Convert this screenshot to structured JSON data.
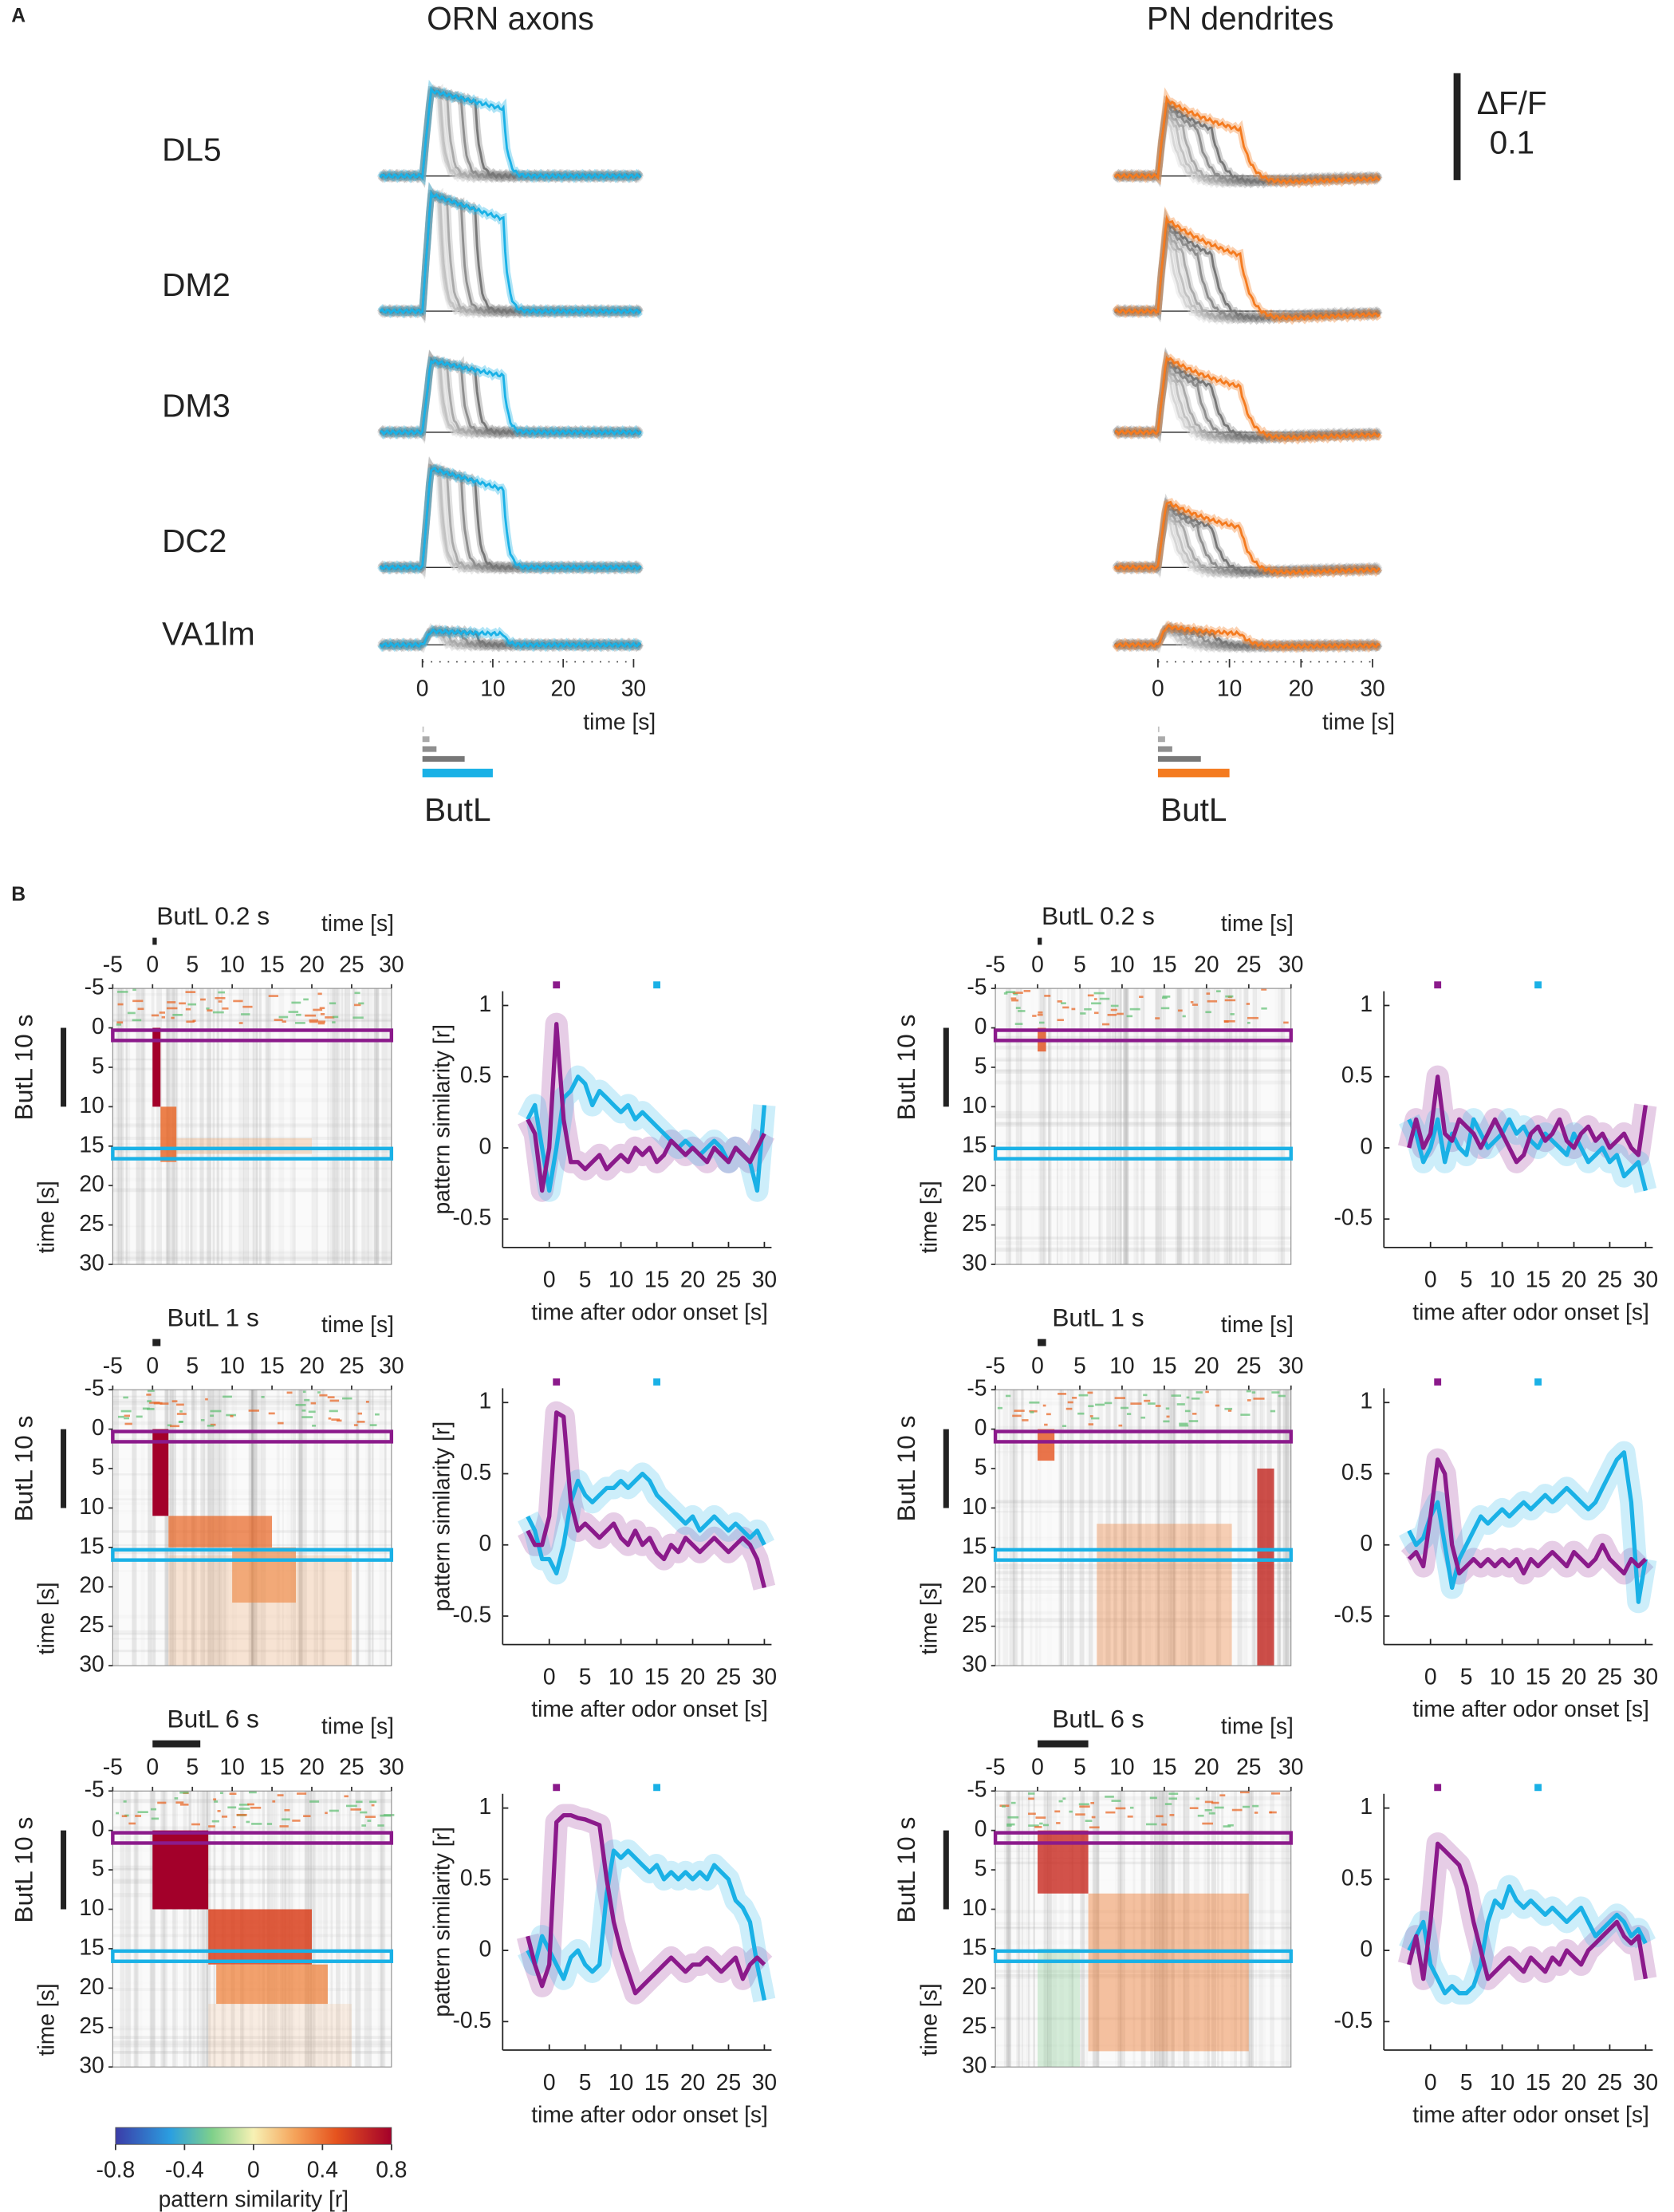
{
  "panel_a": {
    "label": "A",
    "scale_bar": {
      "label": "ΔF/F",
      "value": 0.1
    },
    "glomeruli": [
      "DL5",
      "DM2",
      "DM3",
      "DC2",
      "VA1lm"
    ],
    "columns": [
      {
        "title": "ORN axons",
        "color": "#1ab1e6",
        "stimulus": "ButL",
        "xlim": [
          -6,
          31
        ],
        "xticks": [
          0,
          10,
          20,
          30
        ],
        "xlabel": "time [s]"
      },
      {
        "title": "PN dendrites",
        "color": "#f47b20",
        "stimulus": "ButL",
        "xlim": [
          -6,
          31
        ],
        "xticks": [
          0,
          10,
          20,
          30
        ],
        "xlabel": "time [s]"
      }
    ]
  },
  "panel_b": {
    "label": "B",
    "colorbar": {
      "label": "pattern similarity [r]",
      "lim": [
        -0.8,
        0.8
      ],
      "ticks": [
        -0.8,
        -0.4,
        0,
        0.4,
        0.8
      ]
    }
  },
  "chart_data": [
    {
      "type": "heatmap",
      "title": "ButL 0.2 s",
      "xlabel": "time [s]",
      "ylabel": "time [s]",
      "reference": "ButL 10 s",
      "xlim": [
        -5,
        30
      ],
      "ylim": [
        -5,
        30
      ],
      "xticks": [
        -5,
        0,
        5,
        10,
        15,
        20,
        25,
        30
      ],
      "yticks": [
        -5,
        0,
        5,
        10,
        15,
        20,
        25,
        30
      ]
    },
    {
      "type": "line",
      "xlabel": "time after odor onset [s]",
      "ylabel": "pattern similarity [r]",
      "xlim": [
        -6.5,
        31
      ],
      "ylim": [
        -0.7,
        1.1
      ],
      "xticks": [
        0,
        5,
        10,
        15,
        20,
        25,
        30
      ],
      "yticks": [
        -0.5,
        0,
        0.5,
        1
      ],
      "x": [
        -3,
        -2,
        -1,
        0,
        1,
        2,
        3,
        4,
        5,
        6,
        7,
        8,
        9,
        10,
        11,
        12,
        13,
        14,
        15,
        16,
        17,
        18,
        19,
        20,
        21,
        22,
        23,
        24,
        25,
        26,
        27,
        28,
        29,
        30
      ],
      "series": [
        {
          "color": "#8b1a8b",
          "values": [
            0.2,
            0.1,
            -0.3,
            0.0,
            0.87,
            0.2,
            -0.1,
            -0.1,
            -0.15,
            -0.1,
            -0.05,
            -0.15,
            -0.1,
            -0.05,
            -0.1,
            0.0,
            -0.05,
            0.0,
            -0.1,
            -0.05,
            0.05,
            0.0,
            -0.05,
            0.0,
            -0.05,
            -0.1,
            0.0,
            -0.05,
            -0.1,
            0.0,
            -0.05,
            -0.1,
            0.0,
            0.1
          ]
        },
        {
          "color": "#1ab1e6",
          "values": [
            0.2,
            0.3,
            0.0,
            -0.3,
            0.0,
            0.35,
            0.4,
            0.5,
            0.45,
            0.3,
            0.4,
            0.35,
            0.3,
            0.25,
            0.3,
            0.2,
            0.25,
            0.2,
            0.15,
            0.1,
            0.05,
            0.0,
            0.05,
            0.0,
            -0.05,
            0.0,
            0.05,
            0.0,
            -0.1,
            0.0,
            -0.05,
            -0.1,
            -0.3,
            0.3
          ]
        }
      ]
    },
    {
      "type": "heatmap",
      "title": "ButL 0.2 s",
      "xlabel": "time [s]",
      "ylabel": "time [s]",
      "reference": "ButL 10 s",
      "xlim": [
        -5,
        30
      ],
      "ylim": [
        -5,
        30
      ],
      "xticks": [
        -5,
        0,
        5,
        10,
        15,
        20,
        25,
        30
      ],
      "yticks": [
        -5,
        0,
        5,
        10,
        15,
        20,
        25,
        30
      ]
    },
    {
      "type": "line",
      "xlabel": "time after odor onset [s]",
      "xlim": [
        -6.5,
        31
      ],
      "ylim": [
        -0.7,
        1.1
      ],
      "xticks": [
        0,
        5,
        10,
        15,
        20,
        25,
        30
      ],
      "yticks": [
        -0.5,
        0,
        0.5,
        1
      ],
      "x": [
        -3,
        -2,
        -1,
        0,
        1,
        2,
        3,
        4,
        5,
        6,
        7,
        8,
        9,
        10,
        11,
        12,
        13,
        14,
        15,
        16,
        17,
        18,
        19,
        20,
        21,
        22,
        23,
        24,
        25,
        26,
        27,
        28,
        29,
        30
      ],
      "series": [
        {
          "color": "#8b1a8b",
          "values": [
            0.0,
            0.2,
            0.0,
            0.1,
            0.5,
            0.1,
            0.05,
            0.2,
            0.15,
            0.1,
            0.0,
            0.1,
            0.2,
            0.1,
            0.0,
            -0.1,
            -0.05,
            0.1,
            0.15,
            0.05,
            0.1,
            0.2,
            0.05,
            0.0,
            0.1,
            0.15,
            0.05,
            0.1,
            0.0,
            0.05,
            0.1,
            0.0,
            -0.05,
            0.3
          ]
        },
        {
          "color": "#1ab1e6",
          "values": [
            0.2,
            0.1,
            -0.1,
            0.0,
            0.2,
            -0.1,
            0.1,
            0.0,
            -0.05,
            0.2,
            0.1,
            0.0,
            0.05,
            0.1,
            0.2,
            0.1,
            0.15,
            0.05,
            0.0,
            0.1,
            0.05,
            0.0,
            -0.05,
            0.1,
            0.0,
            -0.1,
            -0.05,
            0.0,
            -0.1,
            -0.05,
            -0.2,
            -0.15,
            -0.1,
            -0.3
          ]
        }
      ]
    },
    {
      "type": "heatmap",
      "title": "ButL 1 s",
      "xlabel": "time [s]",
      "ylabel": "time [s]",
      "reference": "ButL 10 s",
      "xlim": [
        -5,
        30
      ],
      "ylim": [
        -5,
        30
      ],
      "xticks": [
        -5,
        0,
        5,
        10,
        15,
        20,
        25,
        30
      ],
      "yticks": [
        -5,
        0,
        5,
        10,
        15,
        20,
        25,
        30
      ]
    },
    {
      "type": "line",
      "xlabel": "time after odor onset [s]",
      "ylabel": "pattern similarity [r]",
      "xlim": [
        -6.5,
        31
      ],
      "ylim": [
        -0.7,
        1.1
      ],
      "xticks": [
        0,
        5,
        10,
        15,
        20,
        25,
        30
      ],
      "yticks": [
        -0.5,
        0,
        0.5,
        1
      ],
      "x": [
        -3,
        -2,
        -1,
        0,
        1,
        2,
        3,
        4,
        5,
        6,
        7,
        8,
        9,
        10,
        11,
        12,
        13,
        14,
        15,
        16,
        17,
        18,
        19,
        20,
        21,
        22,
        23,
        24,
        25,
        26,
        27,
        28,
        29,
        30
      ],
      "series": [
        {
          "color": "#8b1a8b",
          "values": [
            0.1,
            0.0,
            0.0,
            0.2,
            0.93,
            0.9,
            0.3,
            0.1,
            0.15,
            0.1,
            0.05,
            0.1,
            0.15,
            0.05,
            0.0,
            0.1,
            0.0,
            0.05,
            -0.05,
            -0.1,
            0.0,
            -0.05,
            0.05,
            0.0,
            -0.05,
            0.0,
            0.05,
            0.0,
            -0.05,
            0.0,
            0.05,
            0.0,
            -0.1,
            -0.3
          ]
        },
        {
          "color": "#1ab1e6",
          "values": [
            0.2,
            0.1,
            -0.1,
            -0.1,
            -0.2,
            0.0,
            0.3,
            0.45,
            0.35,
            0.3,
            0.35,
            0.4,
            0.4,
            0.45,
            0.4,
            0.45,
            0.5,
            0.45,
            0.35,
            0.3,
            0.25,
            0.2,
            0.15,
            0.2,
            0.1,
            0.15,
            0.2,
            0.15,
            0.1,
            0.15,
            0.1,
            0.05,
            0.1,
            0.0
          ]
        }
      ]
    },
    {
      "type": "heatmap",
      "title": "ButL 1 s",
      "xlabel": "time [s]",
      "ylabel": "time [s]",
      "reference": "ButL 10 s",
      "xlim": [
        -5,
        30
      ],
      "ylim": [
        -5,
        30
      ],
      "xticks": [
        -5,
        0,
        5,
        10,
        15,
        20,
        25,
        30
      ],
      "yticks": [
        -5,
        0,
        5,
        10,
        15,
        20,
        25,
        30
      ]
    },
    {
      "type": "line",
      "xlabel": "time after odor onset [s]",
      "xlim": [
        -6.5,
        31
      ],
      "ylim": [
        -0.7,
        1.1
      ],
      "xticks": [
        0,
        5,
        10,
        15,
        20,
        25,
        30
      ],
      "yticks": [
        -0.5,
        0,
        0.5,
        1
      ],
      "x": [
        -3,
        -2,
        -1,
        0,
        1,
        2,
        3,
        4,
        5,
        6,
        7,
        8,
        9,
        10,
        11,
        12,
        13,
        14,
        15,
        16,
        17,
        18,
        19,
        20,
        21,
        22,
        23,
        24,
        25,
        26,
        27,
        28,
        29,
        30
      ],
      "series": [
        {
          "color": "#8b1a8b",
          "values": [
            -0.1,
            -0.05,
            -0.15,
            0.2,
            0.6,
            0.5,
            0.0,
            -0.2,
            -0.15,
            -0.1,
            -0.15,
            -0.1,
            -0.15,
            -0.1,
            -0.15,
            -0.1,
            -0.2,
            -0.1,
            -0.15,
            -0.1,
            -0.05,
            -0.1,
            -0.15,
            -0.05,
            -0.1,
            -0.15,
            -0.1,
            0.0,
            -0.1,
            -0.15,
            -0.2,
            -0.1,
            -0.15,
            -0.1
          ]
        },
        {
          "color": "#1ab1e6",
          "values": [
            0.1,
            0.0,
            0.05,
            0.2,
            0.3,
            0.0,
            -0.3,
            -0.1,
            0.0,
            0.1,
            0.2,
            0.15,
            0.2,
            0.25,
            0.2,
            0.25,
            0.3,
            0.25,
            0.3,
            0.35,
            0.3,
            0.35,
            0.4,
            0.35,
            0.3,
            0.25,
            0.3,
            0.4,
            0.5,
            0.6,
            0.65,
            0.3,
            -0.4,
            -0.1
          ]
        }
      ]
    },
    {
      "type": "heatmap",
      "title": "ButL 6 s",
      "xlabel": "time [s]",
      "ylabel": "time [s]",
      "reference": "ButL 10 s",
      "xlim": [
        -5,
        30
      ],
      "ylim": [
        -5,
        30
      ],
      "xticks": [
        -5,
        0,
        5,
        10,
        15,
        20,
        25,
        30
      ],
      "yticks": [
        -5,
        0,
        5,
        10,
        15,
        20,
        25,
        30
      ]
    },
    {
      "type": "line",
      "xlabel": "time after odor onset [s]",
      "ylabel": "pattern similarity [r]",
      "xlim": [
        -6.5,
        31
      ],
      "ylim": [
        -0.7,
        1.1
      ],
      "xticks": [
        0,
        5,
        10,
        15,
        20,
        25,
        30
      ],
      "yticks": [
        -0.5,
        0,
        0.5,
        1
      ],
      "x": [
        -3,
        -2,
        -1,
        0,
        1,
        2,
        3,
        4,
        5,
        6,
        7,
        8,
        9,
        10,
        11,
        12,
        13,
        14,
        15,
        16,
        17,
        18,
        19,
        20,
        21,
        22,
        23,
        24,
        25,
        26,
        27,
        28,
        29,
        30
      ],
      "series": [
        {
          "color": "#8b1a8b",
          "values": [
            0.1,
            -0.1,
            -0.25,
            -0.1,
            0.9,
            0.95,
            0.95,
            0.93,
            0.92,
            0.9,
            0.88,
            0.5,
            0.2,
            0.0,
            -0.15,
            -0.3,
            -0.25,
            -0.2,
            -0.15,
            -0.1,
            -0.05,
            -0.1,
            -0.15,
            -0.1,
            -0.1,
            -0.05,
            -0.1,
            -0.15,
            -0.1,
            -0.05,
            -0.2,
            -0.1,
            -0.05,
            -0.1
          ]
        },
        {
          "color": "#1ab1e6",
          "values": [
            0.0,
            -0.1,
            0.1,
            0.0,
            -0.1,
            -0.2,
            -0.05,
            0.0,
            -0.1,
            -0.15,
            -0.1,
            0.4,
            0.7,
            0.65,
            0.7,
            0.65,
            0.6,
            0.55,
            0.6,
            0.5,
            0.55,
            0.5,
            0.55,
            0.5,
            0.55,
            0.5,
            0.6,
            0.55,
            0.5,
            0.35,
            0.3,
            0.2,
            -0.1,
            -0.35
          ]
        }
      ]
    },
    {
      "type": "heatmap",
      "title": "ButL 6 s",
      "xlabel": "time [s]",
      "ylabel": "time [s]",
      "reference": "ButL 10 s",
      "xlim": [
        -5,
        30
      ],
      "ylim": [
        -5,
        30
      ],
      "xticks": [
        -5,
        0,
        5,
        10,
        15,
        20,
        25,
        30
      ],
      "yticks": [
        -5,
        0,
        5,
        10,
        15,
        20,
        25,
        30
      ]
    },
    {
      "type": "line",
      "xlabel": "time after odor onset [s]",
      "xlim": [
        -6.5,
        31
      ],
      "ylim": [
        -0.7,
        1.1
      ],
      "xticks": [
        0,
        5,
        10,
        15,
        20,
        25,
        30
      ],
      "yticks": [
        -0.5,
        0,
        0.5,
        1
      ],
      "x": [
        -3,
        -2,
        -1,
        0,
        1,
        2,
        3,
        4,
        5,
        6,
        7,
        8,
        9,
        10,
        11,
        12,
        13,
        14,
        15,
        16,
        17,
        18,
        19,
        20,
        21,
        22,
        23,
        24,
        25,
        26,
        27,
        28,
        29,
        30
      ],
      "series": [
        {
          "color": "#8b1a8b",
          "values": [
            -0.1,
            0.1,
            -0.2,
            0.2,
            0.75,
            0.7,
            0.65,
            0.6,
            0.45,
            0.2,
            0.0,
            -0.2,
            -0.15,
            -0.1,
            -0.05,
            -0.1,
            -0.15,
            -0.05,
            -0.1,
            -0.15,
            -0.05,
            -0.1,
            0.0,
            -0.05,
            -0.1,
            0.0,
            0.05,
            0.1,
            0.15,
            0.2,
            0.1,
            0.05,
            0.1,
            -0.2
          ]
        },
        {
          "color": "#1ab1e6",
          "values": [
            0.0,
            0.1,
            0.2,
            -0.1,
            -0.2,
            -0.3,
            -0.25,
            -0.3,
            -0.3,
            -0.25,
            -0.1,
            0.2,
            0.35,
            0.3,
            0.45,
            0.35,
            0.3,
            0.35,
            0.3,
            0.25,
            0.3,
            0.25,
            0.2,
            0.25,
            0.3,
            0.2,
            0.1,
            0.15,
            0.2,
            0.25,
            0.2,
            0.1,
            0.15,
            0.05
          ]
        }
      ]
    }
  ]
}
